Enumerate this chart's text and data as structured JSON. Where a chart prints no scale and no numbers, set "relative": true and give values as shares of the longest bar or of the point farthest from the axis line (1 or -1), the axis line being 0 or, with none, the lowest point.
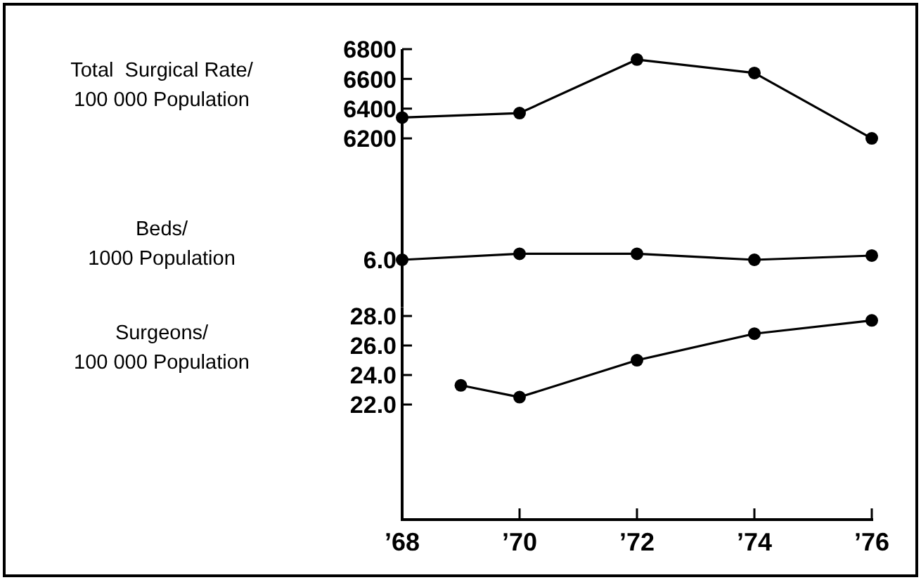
{
  "chart_data": [
    {
      "type": "line",
      "ylabel": "Total  Surgical Rate/\n100 000 Population",
      "x": [
        1968,
        1970,
        1972,
        1974,
        1976
      ],
      "values": [
        6340,
        6370,
        6730,
        6640,
        6200
      ],
      "color": "#000000",
      "xlim": [
        1968,
        1976
      ],
      "ylim": [
        6120,
        6800
      ],
      "yticks": [
        6200,
        6400,
        6600,
        6800
      ],
      "tick_labels": "y",
      "marker": "circle",
      "line_style": "solid"
    },
    {
      "type": "line",
      "ylabel": "Beds/\n1000 Population",
      "x": [
        1968,
        1970,
        1972,
        1974,
        1976
      ],
      "values": [
        0,
        1,
        1,
        0,
        0.7
      ],
      "relative": true,
      "color": "#000000",
      "xlim": [
        1968,
        1976
      ],
      "annotations": [
        "6.0"
      ],
      "tick_labels": false,
      "marker": "circle",
      "line_style": "solid"
    },
    {
      "type": "line",
      "ylabel": "Surgeons/\n100 000 Population",
      "x": [
        1969,
        1970,
        1972,
        1974,
        1976
      ],
      "values": [
        23.3,
        22.5,
        25.0,
        26.8,
        27.7
      ],
      "color": "#000000",
      "xlim": [
        1968,
        1976
      ],
      "ylim": [
        14.2,
        28.6
      ],
      "yticks": [
        {
          "value": 22,
          "label": "22.0"
        },
        {
          "value": 24,
          "label": "24.0"
        },
        {
          "value": 26,
          "label": "26.0"
        },
        {
          "value": 28,
          "label": "28.0"
        }
      ],
      "xticks": [
        {
          "value": 1968,
          "label": "’68"
        },
        {
          "value": 1970,
          "label": "’70"
        },
        {
          "value": 1972,
          "label": "’72"
        },
        {
          "value": 1974,
          "label": "’74"
        },
        {
          "value": 1976,
          "label": "’76"
        }
      ],
      "marker": "circle",
      "line_style": "solid"
    }
  ]
}
